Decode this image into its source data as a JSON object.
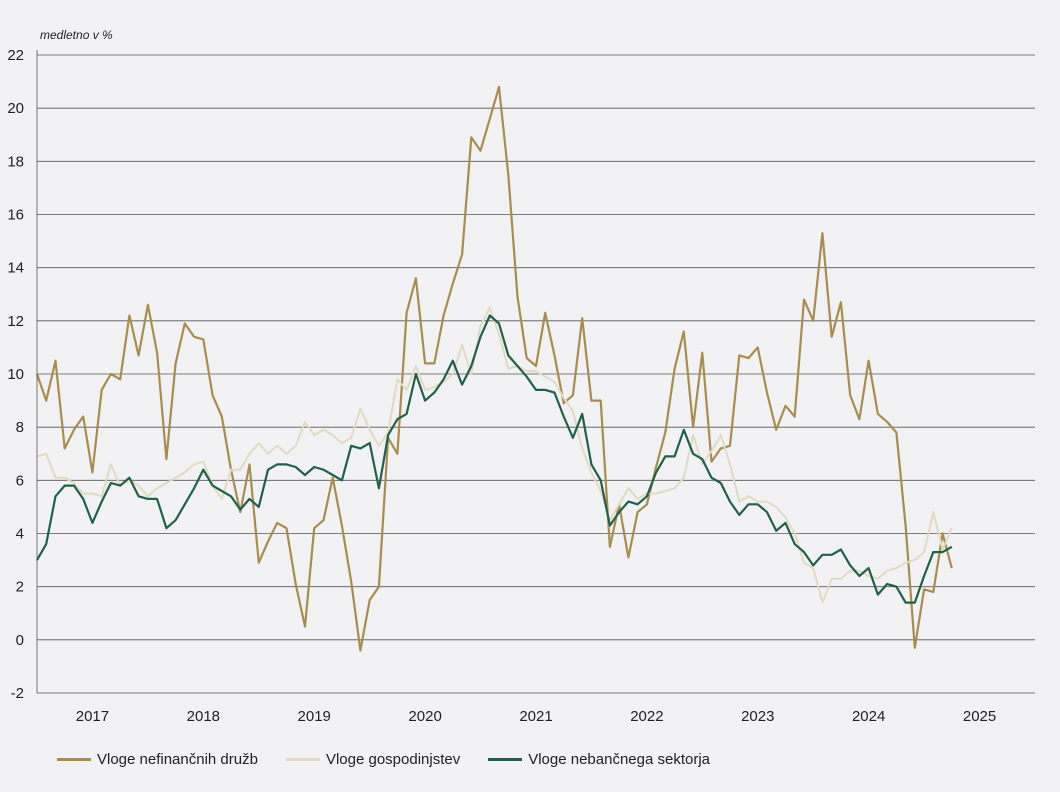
{
  "chart_data": {
    "type": "line",
    "unit_label": "medletno v %",
    "y_ticks": [
      "22",
      "20",
      "18",
      "16",
      "14",
      "12",
      "10",
      "8",
      "6",
      "4",
      "2",
      "0",
      "-2"
    ],
    "x_ticks": [
      "2017",
      "2018",
      "2019",
      "2020",
      "2021",
      "2022",
      "2023",
      "2024",
      "2025"
    ],
    "ylim": [
      -2,
      22
    ],
    "xlim": [
      2016.5,
      2025.5
    ],
    "grid": "horizontal",
    "legend_position": "bottom",
    "x_start": 2016.5,
    "x_step": 0.08333,
    "series": [
      {
        "name": "Vloge nefinančnih družb",
        "color": "#a88d4e",
        "values": [
          10.0,
          9.0,
          10.5,
          7.2,
          7.9,
          8.4,
          6.3,
          9.4,
          10.0,
          9.8,
          12.2,
          10.7,
          12.6,
          10.8,
          6.8,
          10.4,
          11.9,
          11.4,
          11.3,
          9.2,
          8.4,
          6.4,
          4.8,
          6.6,
          2.9,
          3.7,
          4.4,
          4.2,
          2.1,
          0.5,
          4.2,
          4.5,
          6.1,
          4.3,
          2.2,
          -0.4,
          1.5,
          2.0,
          7.6,
          7.0,
          12.3,
          13.6,
          10.4,
          10.4,
          12.2,
          13.4,
          14.5,
          18.9,
          18.4,
          19.6,
          20.8,
          17.5,
          12.9,
          10.6,
          10.3,
          12.3,
          10.7,
          8.9,
          9.2,
          12.1,
          9.0,
          9.0,
          3.5,
          5.1,
          3.1,
          4.8,
          5.1,
          6.5,
          7.8,
          10.2,
          11.6,
          8.0,
          10.8,
          6.7,
          7.2,
          7.3,
          10.7,
          10.6,
          11.0,
          9.3,
          7.9,
          8.8,
          8.4,
          12.8,
          12.0,
          15.3,
          11.4,
          12.7,
          9.2,
          8.3,
          10.5,
          8.5,
          8.2,
          7.8,
          4.3,
          -0.3,
          1.9,
          1.8,
          4.0,
          2.7
        ],
        "end_value": 2.7
      },
      {
        "name": "Vloge gospodinjstev",
        "color": "#e3dac3",
        "values": [
          6.9,
          7.0,
          6.1,
          6.1,
          5.9,
          5.5,
          5.5,
          5.4,
          6.6,
          5.8,
          6.0,
          5.8,
          5.4,
          5.7,
          5.9,
          6.1,
          6.3,
          6.6,
          6.7,
          5.8,
          5.3,
          6.4,
          6.4,
          7.0,
          7.4,
          7.0,
          7.3,
          7.0,
          7.3,
          8.2,
          7.7,
          7.9,
          7.7,
          7.4,
          7.6,
          8.7,
          7.9,
          7.3,
          7.8,
          9.8,
          9.4,
          10.3,
          9.4,
          9.5,
          9.7,
          10.0,
          11.1,
          10.0,
          11.8,
          12.5,
          11.5,
          10.2,
          10.3,
          10.1,
          10.1,
          9.9,
          9.7,
          9.1,
          8.6,
          7.2,
          6.3,
          5.6,
          4.5,
          5.1,
          5.7,
          5.3,
          5.5,
          5.5,
          5.6,
          5.7,
          6.1,
          7.7,
          6.6,
          7.1,
          7.7,
          6.6,
          5.2,
          5.4,
          5.2,
          5.2,
          5.0,
          4.6,
          4.0,
          2.9,
          2.7,
          1.4,
          2.3,
          2.3,
          2.6,
          2.6,
          2.4,
          2.3,
          2.6,
          2.7,
          2.9,
          3.0,
          3.3,
          4.8,
          3.4,
          4.2
        ],
        "end_value": 4.2
      },
      {
        "name": "Vloge nebančnega sektorja",
        "color": "#1f6149",
        "values": [
          3.0,
          3.6,
          5.4,
          5.8,
          5.8,
          5.3,
          4.4,
          5.2,
          5.9,
          5.8,
          6.1,
          5.4,
          5.3,
          5.3,
          4.2,
          4.5,
          5.1,
          5.7,
          6.4,
          5.8,
          5.6,
          5.4,
          4.9,
          5.3,
          5.0,
          6.4,
          6.6,
          6.6,
          6.5,
          6.2,
          6.5,
          6.4,
          6.2,
          6.0,
          7.3,
          7.2,
          7.4,
          5.7,
          7.7,
          8.3,
          8.5,
          10.0,
          9.0,
          9.3,
          9.8,
          10.5,
          9.6,
          10.3,
          11.4,
          12.2,
          11.9,
          10.7,
          10.3,
          9.9,
          9.4,
          9.4,
          9.3,
          8.4,
          7.6,
          8.5,
          6.6,
          6.0,
          4.3,
          4.8,
          5.2,
          5.1,
          5.4,
          6.3,
          6.9,
          6.9,
          7.9,
          7.0,
          6.8,
          6.1,
          5.9,
          5.2,
          4.7,
          5.1,
          5.1,
          4.8,
          4.1,
          4.4,
          3.6,
          3.3,
          2.8,
          3.2,
          3.2,
          3.4,
          2.8,
          2.4,
          2.7,
          1.7,
          2.1,
          2.0,
          1.4,
          1.4,
          2.4,
          3.3,
          3.3,
          3.5
        ],
        "end_value": 3.5
      }
    ]
  }
}
